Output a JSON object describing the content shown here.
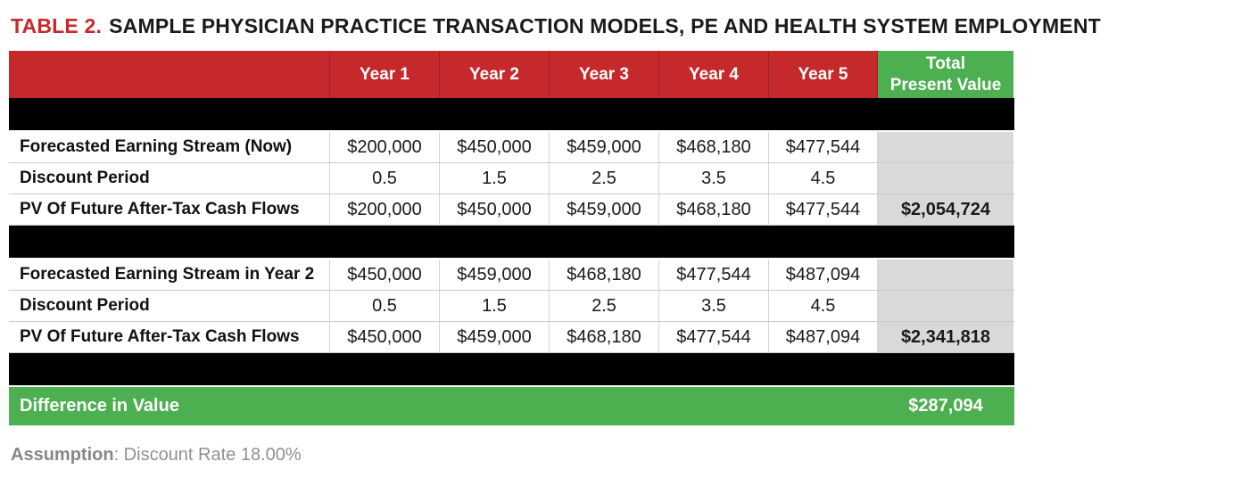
{
  "title": {
    "tag": "TABLE 2.",
    "text": "SAMPLE PHYSICIAN PRACTICE TRANSACTION MODELS, PE AND HEALTH SYSTEM EMPLOYMENT"
  },
  "header": {
    "year_cols": [
      "Year 1",
      "Year 2",
      "Year 3",
      "Year 4",
      "Year 5"
    ],
    "total_line1": "Total",
    "total_line2": "Present Value"
  },
  "sections": [
    {
      "rows": [
        {
          "label": "Forecasted Earning Stream (Now)",
          "values": [
            "$200,000",
            "$450,000",
            "$459,000",
            "$468,180",
            "$477,544"
          ],
          "total": ""
        },
        {
          "label": "Discount Period",
          "values": [
            "0.5",
            "1.5",
            "2.5",
            "3.5",
            "4.5"
          ],
          "total": ""
        },
        {
          "label": "PV Of Future After-Tax Cash Flows",
          "values": [
            "$200,000",
            "$450,000",
            "$459,000",
            "$468,180",
            "$477,544"
          ],
          "total": "$2,054,724"
        }
      ]
    },
    {
      "rows": [
        {
          "label": "Forecasted Earning Stream in Year 2",
          "values": [
            "$450,000",
            "$459,000",
            "$468,180",
            "$477,544",
            "$487,094"
          ],
          "total": ""
        },
        {
          "label": "Discount Period",
          "values": [
            "0.5",
            "1.5",
            "2.5",
            "3.5",
            "4.5"
          ],
          "total": ""
        },
        {
          "label": "PV Of Future After-Tax Cash Flows",
          "values": [
            "$450,000",
            "$459,000",
            "$468,180",
            "$477,544",
            "$487,094"
          ],
          "total": "$2,341,818"
        }
      ]
    }
  ],
  "difference": {
    "label": "Difference in Value",
    "value": "$287,094"
  },
  "footnote": {
    "label": "Assumption",
    "text": ": Discount Rate 18.00%"
  },
  "colors": {
    "header_red": "#c5292b",
    "accent_green": "#4caf50",
    "total_gray": "#d9d9d9",
    "divider_black": "#000000"
  }
}
